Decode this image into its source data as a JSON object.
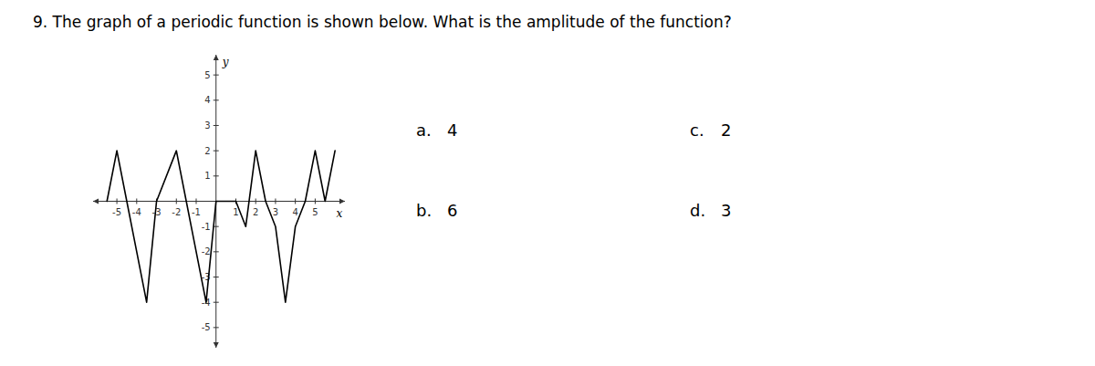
{
  "chart_data": {
    "type": "line",
    "title": "9.   The graph of a periodic function is shown below. What is the amplitude of the function?",
    "xlabel": "x",
    "ylabel": "y",
    "x": [
      -5.5,
      -5.0,
      -4.5,
      -3.5,
      -3.0,
      -2.0,
      -1.5,
      -0.5,
      0.0,
      0.5,
      1.0,
      1.5,
      2.0,
      2.5,
      3.0,
      3.5,
      4.0,
      4.5,
      5.0,
      5.5,
      6.0
    ],
    "values": [
      0.0,
      2.0,
      0.0,
      -4.0,
      0.0,
      2.0,
      0.0,
      -4.0,
      0.0,
      0.0,
      0.0,
      -1.0,
      2.0,
      0.0,
      -1.0,
      -4.0,
      -1.0,
      0.0,
      2.0,
      0.0,
      2.0
    ],
    "color": "#000000",
    "xlim": [
      -6.2,
      6.5
    ],
    "ylim": [
      -5.8,
      5.8
    ],
    "xticks": [
      -5,
      -4,
      -3,
      -2,
      -1,
      1,
      2,
      3,
      4,
      5
    ],
    "yticks": [
      -5,
      -4,
      -3,
      -2,
      -1,
      1,
      2,
      3,
      4,
      5
    ],
    "grid": false,
    "annotations": [
      {
        "label": "a.",
        "text": "4"
      },
      {
        "label": "c.",
        "text": "2"
      },
      {
        "label": "b.",
        "text": "6"
      },
      {
        "label": "d.",
        "text": "3"
      }
    ]
  }
}
